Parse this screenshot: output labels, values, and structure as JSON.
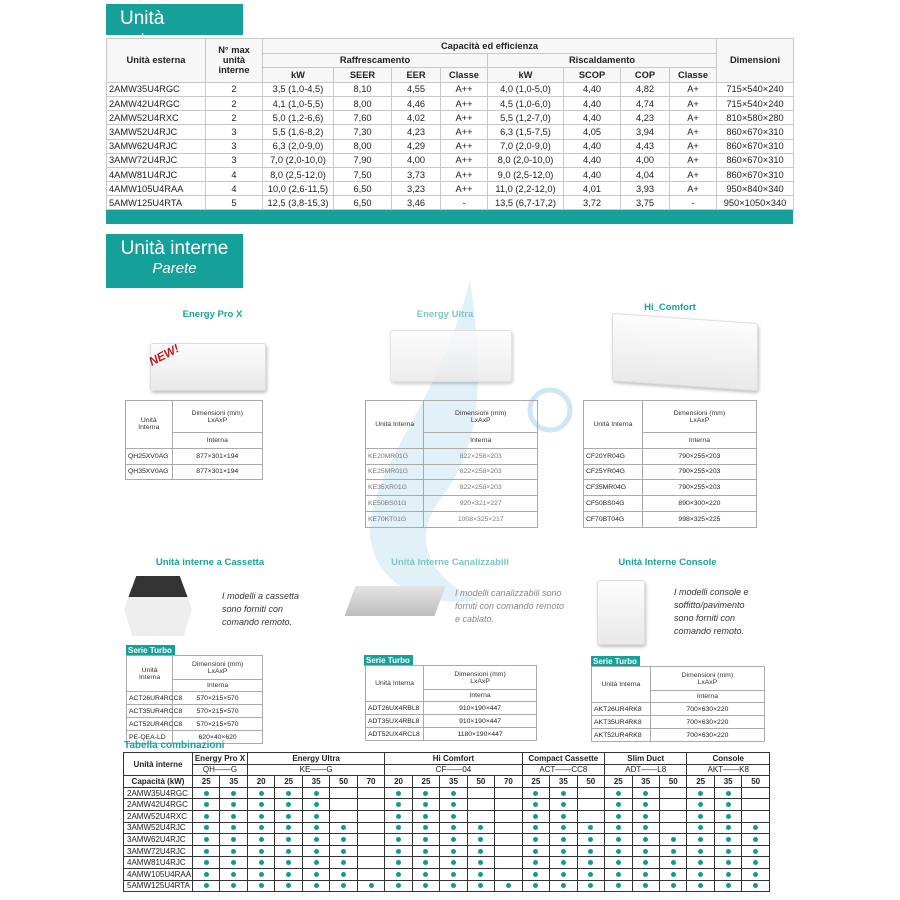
{
  "outdoor": {
    "title": "Unità esterne",
    "headers": {
      "unit": "Unità esterna",
      "max": "N° max unità interne",
      "capacity": "Capacità ed efficienza",
      "cooling": "Raffrescamento",
      "heating": "Riscaldamento",
      "dims": "Dimensioni",
      "kw": "kW",
      "seer": "SEER",
      "eer": "EER",
      "class": "Classe",
      "scop": "SCOP",
      "cop": "COP"
    },
    "rows": [
      [
        "2AMW35U4RGC",
        "2",
        "3,5 (1,0-4,5)",
        "8,10",
        "4,55",
        "A++",
        "4,0 (1,0-5,0)",
        "4,40",
        "4,82",
        "A+",
        "715×540×240"
      ],
      [
        "2AMW42U4RGC",
        "2",
        "4,1 (1,0-5,5)",
        "8,00",
        "4,46",
        "A++",
        "4,5 (1,0-6,0)",
        "4,40",
        "4,74",
        "A+",
        "715×540×240"
      ],
      [
        "2AMW52U4RXC",
        "2",
        "5,0 (1,2-6,6)",
        "7,60",
        "4,02",
        "A++",
        "5,5 (1,2-7,0)",
        "4,40",
        "4,23",
        "A+",
        "810×580×280"
      ],
      [
        "3AMW52U4RJC",
        "3",
        "5,5 (1,6-8,2)",
        "7,30",
        "4,23",
        "A++",
        "6,3 (1,5-7,5)",
        "4,05",
        "3,94",
        "A+",
        "860×670×310"
      ],
      [
        "3AMW62U4RJC",
        "3",
        "6,3 (2,0-9,0)",
        "8,00",
        "4,29",
        "A++",
        "7,0 (2,0-9,0)",
        "4,40",
        "4,43",
        "A+",
        "860×670×310"
      ],
      [
        "3AMW72U4RJC",
        "3",
        "7,0 (2,0-10,0)",
        "7,90",
        "4,00",
        "A++",
        "8,0 (2,0-10,0)",
        "4,40",
        "4,00",
        "A+",
        "860×670×310"
      ],
      [
        "4AMW81U4RJC",
        "4",
        "8,0 (2,5-12,0)",
        "7,50",
        "3,73",
        "A++",
        "9,0 (2,5-12,0)",
        "4,40",
        "4,04",
        "A+",
        "860×670×310"
      ],
      [
        "4AMW105U4RAA",
        "4",
        "10,0 (2,6-11,5)",
        "6,50",
        "3,23",
        "A++",
        "11,0 (2,2-12,0)",
        "4,01",
        "3,93",
        "A+",
        "950×840×340"
      ],
      [
        "5AMW125U4RTA",
        "5",
        "12,5 (3,8-15,3)",
        "6,50",
        "3,46",
        "-",
        "13,5 (6,7-17,2)",
        "3,72",
        "3,75",
        "-",
        "950×1050×340"
      ]
    ]
  },
  "indoor": {
    "title": "Unità interne",
    "subtitle": "Parete"
  },
  "mini_headers": {
    "unit": "Unità Interna",
    "dims": "Dimensioni (mm)",
    "lxaxp": "LxAxP",
    "interna": "Interna"
  },
  "wall": [
    {
      "name": "Energy Pro X",
      "badge": "NEW!",
      "rows": [
        [
          "QH25XV0AG",
          "877×301×194"
        ],
        [
          "QH35XV0AG",
          "877×301×194"
        ]
      ]
    },
    {
      "name": "Energy Ultra",
      "rows": [
        [
          "KE20MR01G",
          "822×258×203"
        ],
        [
          "KE25MR01G",
          "822×258×203"
        ],
        [
          "KE35XR01G",
          "822×258×203"
        ],
        [
          "KE50BS01G",
          "920×321×227"
        ],
        [
          "KE70KT01G",
          "1008×325×217"
        ]
      ]
    },
    {
      "name": "Hi_Comfort",
      "rows": [
        [
          "CF20YR04G",
          "790×255×203"
        ],
        [
          "CF25YR04G",
          "790×255×203"
        ],
        [
          "CF35MR04G",
          "790×255×203"
        ],
        [
          "CF50BS04G",
          "890×300×220"
        ],
        [
          "CF70BT04G",
          "998×325×225"
        ]
      ]
    }
  ],
  "other": [
    {
      "name": "Unità interne a Cassetta",
      "description": "I modelli a cassetta sono forniti con comando remoto.",
      "series": "Serie Turbo",
      "rows": [
        [
          "ACT26UR4RCC8",
          "570×215×570"
        ],
        [
          "ACT35UR4RCC8",
          "570×215×570"
        ],
        [
          "ACT52UR4RCC8",
          "570×215×570"
        ],
        [
          "PE-QEA-LD",
          "620×40×620"
        ]
      ]
    },
    {
      "name": "Unità Interne Canalizzabili",
      "description": "I modelli canalizzabili sono forniti con comando remoto e cablato.",
      "series": "Serie Turbo",
      "rows": [
        [
          "ADT26UX4RBL8",
          "910×190×447"
        ],
        [
          "ADT35UX4RBL8",
          "910×190×447"
        ],
        [
          "ADT52UX4RCL8",
          "1180×190×447"
        ]
      ]
    },
    {
      "name": "Unità Interne Console",
      "description": "I modelli console e soffitto/pavimento sono forniti con comando remoto.",
      "series": "Serie Turbo",
      "rows": [
        [
          "AKT26UR4RK8",
          "700×630×220"
        ],
        [
          "AKT35UR4RK8",
          "700×630×220"
        ],
        [
          "AKT52UR4RK8",
          "700×630×220"
        ]
      ]
    }
  ],
  "combo": {
    "title": "Tabella combinazioni",
    "header_unit": "Unità interne",
    "capacity_label": "Capacità (kW)",
    "groups": [
      {
        "name": "Energy Pro X",
        "code": "QH——G",
        "caps": [
          "25",
          "35"
        ]
      },
      {
        "name": "Energy Ultra",
        "code": "KE——G",
        "caps": [
          "20",
          "25",
          "35",
          "50",
          "70"
        ]
      },
      {
        "name": "Hi Comfort",
        "code": "CF——04",
        "caps": [
          "20",
          "25",
          "35",
          "50",
          "70"
        ]
      },
      {
        "name": "Compact Cassette",
        "code": "ACT——CC8",
        "caps": [
          "25",
          "35",
          "50"
        ]
      },
      {
        "name": "Slim Duct",
        "code": "ADT——L8",
        "caps": [
          "25",
          "35",
          "50"
        ]
      },
      {
        "name": "Console",
        "code": "AKT——K8",
        "caps": [
          "25",
          "35",
          "50"
        ]
      }
    ],
    "rows": [
      {
        "model": "2AMW35U4RGC",
        "marks": [
          1,
          1,
          1,
          1,
          1,
          0,
          0,
          1,
          1,
          1,
          0,
          0,
          1,
          1,
          0,
          1,
          1,
          0,
          1,
          1,
          0
        ]
      },
      {
        "model": "2AMW42U4RGC",
        "marks": [
          1,
          1,
          1,
          1,
          1,
          0,
          0,
          1,
          1,
          1,
          0,
          0,
          1,
          1,
          0,
          1,
          1,
          0,
          1,
          1,
          0
        ]
      },
      {
        "model": "2AMW52U4RXC",
        "marks": [
          1,
          1,
          1,
          1,
          1,
          0,
          0,
          1,
          1,
          1,
          0,
          0,
          1,
          1,
          0,
          1,
          1,
          0,
          1,
          1,
          0
        ]
      },
      {
        "model": "3AMW52U4RJC",
        "marks": [
          1,
          1,
          1,
          1,
          1,
          1,
          0,
          1,
          1,
          1,
          1,
          0,
          1,
          1,
          1,
          1,
          1,
          0,
          1,
          1,
          1
        ]
      },
      {
        "model": "3AMW62U4RJC",
        "marks": [
          1,
          1,
          1,
          1,
          1,
          1,
          0,
          1,
          1,
          1,
          1,
          0,
          1,
          1,
          1,
          1,
          1,
          1,
          1,
          1,
          1
        ]
      },
      {
        "model": "3AMW72U4RJC",
        "marks": [
          1,
          1,
          1,
          1,
          1,
          1,
          0,
          1,
          1,
          1,
          1,
          0,
          1,
          1,
          1,
          1,
          1,
          1,
          1,
          1,
          1
        ]
      },
      {
        "model": "4AMW81U4RJC",
        "marks": [
          1,
          1,
          1,
          1,
          1,
          1,
          0,
          1,
          1,
          1,
          1,
          0,
          1,
          1,
          1,
          1,
          1,
          1,
          1,
          1,
          1
        ]
      },
      {
        "model": "4AMW105U4RAA",
        "marks": [
          1,
          1,
          1,
          1,
          1,
          1,
          0,
          1,
          1,
          1,
          1,
          0,
          1,
          1,
          1,
          1,
          1,
          1,
          1,
          1,
          1
        ]
      },
      {
        "model": "5AMW125U4RTA",
        "marks": [
          1,
          1,
          1,
          1,
          1,
          1,
          1,
          1,
          1,
          1,
          1,
          1,
          1,
          1,
          1,
          1,
          1,
          1,
          1,
          1,
          1
        ]
      }
    ]
  },
  "colors": {
    "accent": "#16a09a",
    "dot": "#149a94"
  }
}
